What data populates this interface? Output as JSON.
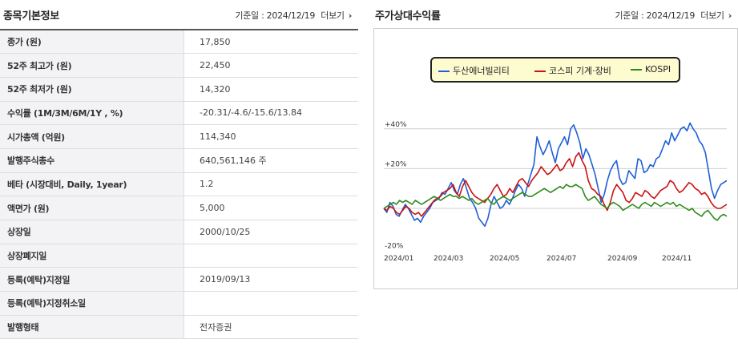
{
  "info": {
    "title": "종목기본정보",
    "base_date": "기준일 : 2024/12/19",
    "more_label": "더보기",
    "rows": [
      {
        "label": "종가 (원)",
        "value": "17,850"
      },
      {
        "label": "52주 최고가 (원)",
        "value": "22,450"
      },
      {
        "label": "52주 최저가 (원)",
        "value": "14,320"
      },
      {
        "label": "수익률 (1M/3M/6M/1Y , %)",
        "value": "-20.31/-4.6/-15.6/13.84"
      },
      {
        "label": "시가총액 (억원)",
        "value": "114,340"
      },
      {
        "label": "발행주식총수",
        "value": "640,561,146 주"
      },
      {
        "label": "베타 (시장대비, Daily, 1year)",
        "value": "1.2"
      },
      {
        "label": "액면가 (원)",
        "value": "5,000"
      },
      {
        "label": "상장일",
        "value": "2000/10/25"
      },
      {
        "label": "상장폐지일",
        "value": ""
      },
      {
        "label": "등록(예탁)지정일",
        "value": "2019/09/13"
      },
      {
        "label": "등록(예탁)지정취소일",
        "value": ""
      },
      {
        "label": "발행형태",
        "value": "전자증권"
      }
    ]
  },
  "returns": {
    "title": "주가상대수익률",
    "base_date": "기준일 : 2024/12/19",
    "more_label": "더보기"
  },
  "chart_data": {
    "type": "line",
    "y_ticks": [
      "+40%",
      "+20%",
      "-20%"
    ],
    "x_ticks": [
      "2024/01",
      "2024/03",
      "2024/05",
      "2024/07",
      "2024/09",
      "2024/11"
    ],
    "ylim": [
      -20,
      45
    ],
    "grid": true,
    "legend_position": "top-center",
    "series": [
      {
        "name": "두산에너빌리티",
        "color": "#1f5fd6",
        "values": [
          0,
          -2,
          3,
          1,
          -3,
          -4,
          -1,
          2,
          0,
          -3,
          -6,
          -5,
          -7,
          -4,
          -2,
          0,
          3,
          4,
          5,
          8,
          7,
          10,
          13,
          9,
          7,
          12,
          15,
          10,
          5,
          3,
          0,
          -5,
          -7,
          -9,
          -5,
          2,
          6,
          3,
          0,
          1,
          4,
          2,
          5,
          9,
          12,
          10,
          6,
          12,
          17,
          22,
          36,
          31,
          27,
          30,
          34,
          28,
          23,
          30,
          33,
          36,
          32,
          40,
          42,
          38,
          33,
          25,
          30,
          27,
          22,
          17,
          10,
          3,
          7,
          14,
          19,
          22,
          24,
          15,
          12,
          13,
          19,
          17,
          15,
          25,
          24,
          18,
          19,
          22,
          21,
          25,
          26,
          30,
          34,
          32,
          38,
          34,
          37,
          40,
          41,
          39,
          43,
          40,
          38,
          34,
          32,
          28,
          19,
          10,
          5,
          9,
          12,
          13,
          14
        ]
      },
      {
        "name": "코스피 기계·장비",
        "color": "#cc1111",
        "values": [
          0,
          -1,
          1,
          0,
          -2,
          -3,
          -1,
          1,
          0,
          -2,
          -3,
          -2,
          -4,
          -2,
          0,
          2,
          4,
          5,
          6,
          8,
          9,
          10,
          12,
          8,
          6,
          11,
          14,
          11,
          8,
          6,
          5,
          4,
          3,
          5,
          7,
          10,
          12,
          9,
          6,
          7,
          10,
          8,
          11,
          14,
          15,
          13,
          11,
          14,
          16,
          18,
          21,
          19,
          17,
          18,
          20,
          22,
          19,
          20,
          23,
          25,
          21,
          26,
          28,
          24,
          21,
          14,
          10,
          9,
          7,
          6,
          2,
          -1,
          3,
          9,
          12,
          10,
          8,
          4,
          3,
          5,
          8,
          7,
          6,
          9,
          8,
          6,
          5,
          7,
          9,
          10,
          11,
          14,
          13,
          10,
          8,
          9,
          11,
          13,
          12,
          10,
          9,
          7,
          8,
          6,
          3,
          1,
          0,
          0,
          1,
          2
        ]
      },
      {
        "name": "KOSPI",
        "color": "#2e8b18",
        "values": [
          0,
          1,
          2,
          3,
          2,
          4,
          3,
          4,
          3,
          2,
          4,
          3,
          2,
          3,
          4,
          5,
          6,
          5,
          4,
          5,
          6,
          7,
          6,
          6,
          5,
          6,
          5,
          4,
          5,
          3,
          2,
          3,
          4,
          5,
          3,
          2,
          4,
          5,
          6,
          5,
          4,
          5,
          6,
          7,
          8,
          7,
          6,
          6,
          7,
          8,
          9,
          10,
          9,
          8,
          9,
          10,
          11,
          10,
          12,
          11,
          11,
          12,
          11,
          10,
          6,
          4,
          5,
          6,
          4,
          2,
          1,
          0,
          2,
          3,
          2,
          1,
          -1,
          0,
          1,
          2,
          1,
          0,
          2,
          3,
          2,
          1,
          3,
          2,
          1,
          2,
          3,
          2,
          3,
          1,
          2,
          1,
          0,
          -1,
          0,
          -2,
          -3,
          -4,
          -2,
          -1,
          -3,
          -5,
          -6,
          -4,
          -3,
          -4
        ]
      }
    ]
  }
}
